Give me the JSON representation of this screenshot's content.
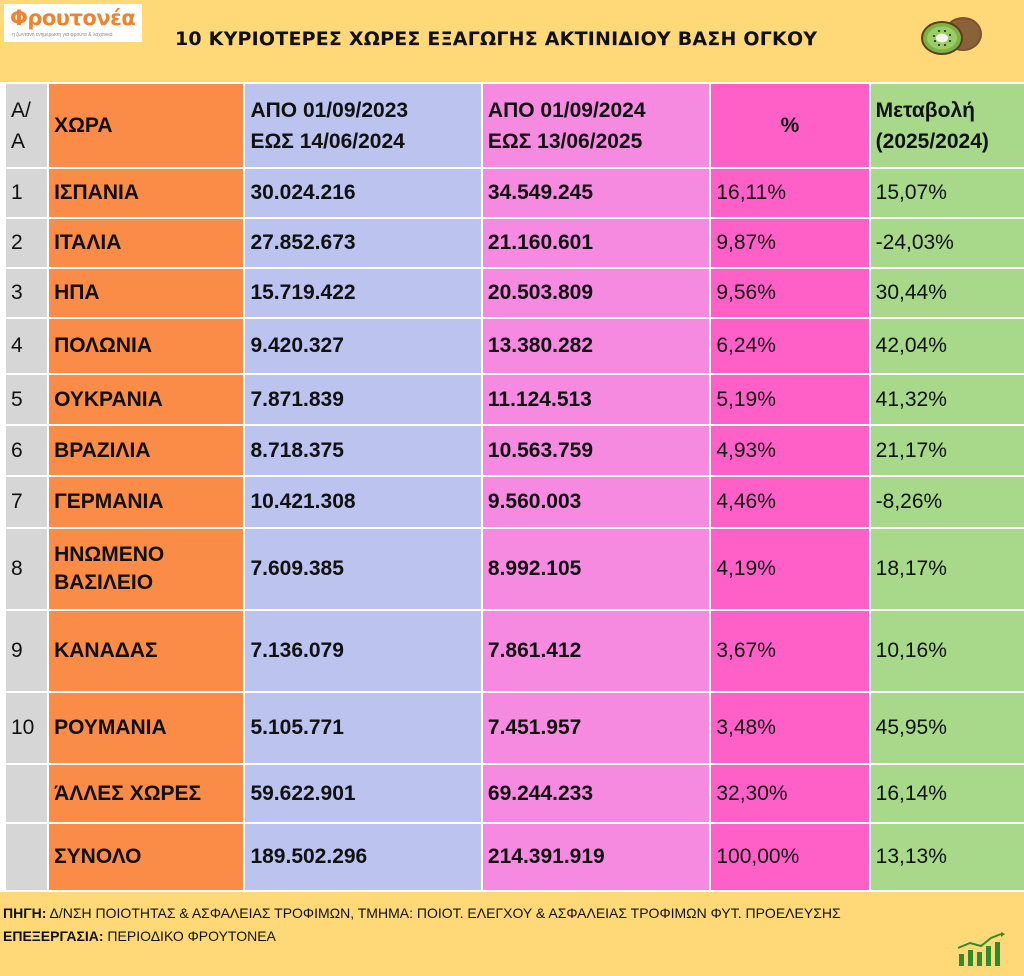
{
  "header": {
    "logo_text": "Φρουτονέα",
    "logo_tagline": "η ζωντανή ενημέρωση για φρούτα & λαχανικά",
    "title": "10 ΚΥΡΙΟΤΕΡΕΣ ΧΩΡΕΣ ΕΞΑΓΩΓΗΣ ΑΚΤΙΝΙΔΙΟΥ ΒΑΣΗ ΟΓΚΟΥ",
    "icon": "kiwi-icon"
  },
  "table": {
    "headers": {
      "aa_line1": "Α/",
      "aa_line2": "Α",
      "country": "ΧΩΡΑ",
      "p1_line1": "ΑΠΟ 01/09/2023",
      "p1_line2": "ΕΩΣ  14/06/2024",
      "p2_line1": "ΑΠΟ 01/09/2024",
      "p2_line2": "ΕΩΣ  13/06/2025",
      "pct": "%",
      "change_line1": "Μεταβολή",
      "change_line2": "(2025/2024)"
    },
    "rows": [
      {
        "aa": "1",
        "country": "ΙΣΠΑΝΙΑ",
        "v2024": "30.024.216",
        "v2025": "34.549.245",
        "pct": "16,11%",
        "change": "15,07%"
      },
      {
        "aa": "2",
        "country": "ΙΤΑΛΙΑ",
        "v2024": "27.852.673",
        "v2025": "21.160.601",
        "pct": "9,87%",
        "change": "-24,03%"
      },
      {
        "aa": "3",
        "country": "ΗΠΑ",
        "v2024": "15.719.422",
        "v2025": "20.503.809",
        "pct": "9,56%",
        "change": "30,44%"
      },
      {
        "aa": "4",
        "country": "ΠΟΛΩΝΙΑ",
        "v2024": "9.420.327",
        "v2025": "13.380.282",
        "pct": "6,24%",
        "change": "42,04%"
      },
      {
        "aa": "5",
        "country": "ΟΥΚΡΑΝΙΑ",
        "v2024": "7.871.839",
        "v2025": "11.124.513",
        "pct": "5,19%",
        "change": "41,32%"
      },
      {
        "aa": "6",
        "country": "ΒΡΑΖΙΛΙΑ",
        "v2024": "8.718.375",
        "v2025": "10.563.759",
        "pct": "4,93%",
        "change": "21,17%"
      },
      {
        "aa": "7",
        "country": "ΓΕΡΜΑΝΙΑ",
        "v2024": "10.421.308",
        "v2025": "9.560.003",
        "pct": "4,46%",
        "change": "-8,26%"
      },
      {
        "aa": "8",
        "country_line1": "ΗΝΩΜΕΝΟ",
        "country_line2": "ΒΑΣΙΛΕΙΟ",
        "v2024": "7.609.385",
        "v2025": "8.992.105",
        "pct": "4,19%",
        "change": "18,17%"
      },
      {
        "aa": "9",
        "country": "ΚΑΝΑΔΑΣ",
        "v2024": "7.136.079",
        "v2025": "7.861.412",
        "pct": "3,67%",
        "change": "10,16%"
      },
      {
        "aa": "10",
        "country": "ΡΟΥΜΑΝΙΑ",
        "v2024": "5.105.771",
        "v2025": "7.451.957",
        "pct": "3,48%",
        "change": "45,95%"
      },
      {
        "aa": "",
        "country": "ΆΛΛΕΣ ΧΩΡΕΣ",
        "v2024": "59.622.901",
        "v2025": "69.244.233",
        "pct": "32,30%",
        "change": "16,14%"
      },
      {
        "aa": "",
        "country": "ΣΥΝΟΛΟ",
        "v2024": "189.502.296",
        "v2025": "214.391.919",
        "pct": "100,00%",
        "change": "13,13%"
      }
    ]
  },
  "footer": {
    "source_label": "ΠΗΓΗ:",
    "source_text": " Δ/ΝΣΗ ΠΟΙΟΤΗΤΑΣ & ΑΣΦΑΛΕΙΑΣ ΤΡΟΦΙΜΩΝ, ΤΜΗΜΑ: ΠΟΙΟΤ. ΕΛΕΓΧΟΥ & ΑΣΦΑΛΕΙΑΣ ΤΡΟΦΙΜΩΝ ΦΥΤ. ΠΡΟΕΛΕΥΣΗΣ",
    "processing_label": "ΕΠΕΞΕΡΓΑΣΙΑ:",
    "processing_text": " ΠΕΡΙΟΔΙΚΟ ΦΡΟΥΤΟΝΕΑ",
    "icon": "growth-chart-icon"
  },
  "colors": {
    "header_bg": "#ffd978",
    "aa_col": "#d6d6d6",
    "country_col": "#fa8c48",
    "period1_col": "#bcc3ef",
    "period2_col": "#f58ae0",
    "pct_col": "#ff60c8",
    "change_col": "#a8d98a",
    "logo": "#f0832c"
  }
}
